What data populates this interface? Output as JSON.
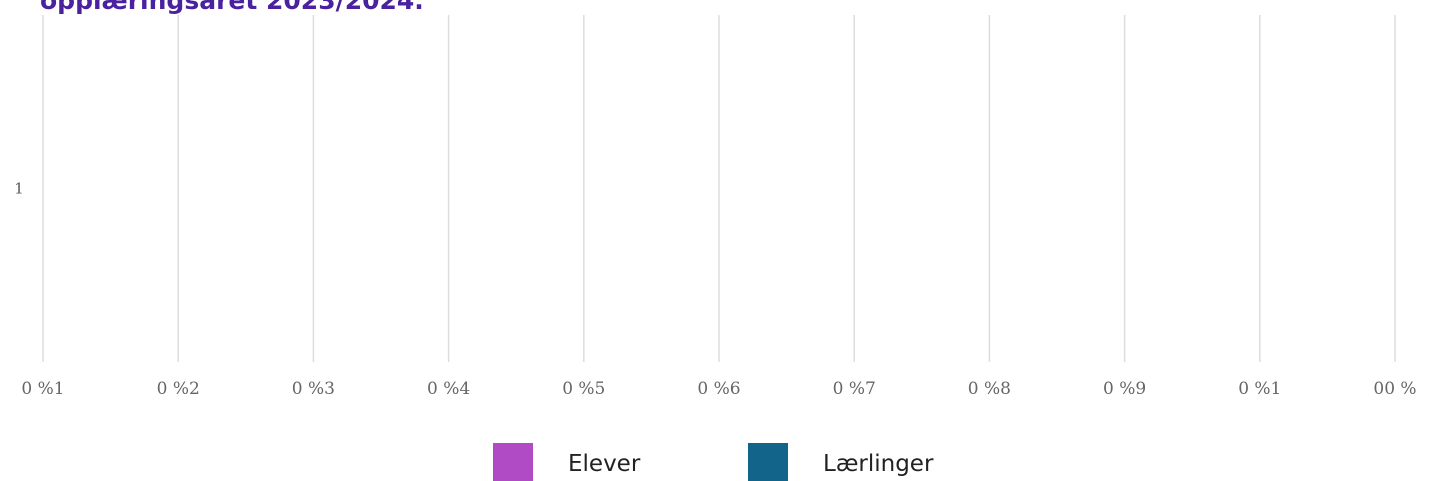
{
  "chart_data": {
    "type": "bar",
    "orientation": "horizontal",
    "title": "opplæringsåret 2023/2024.",
    "categories": [
      "1"
    ],
    "series": [
      {
        "name": "Elever",
        "color": "#b04ac5",
        "values": [
          0
        ]
      },
      {
        "name": "Lærlinger",
        "color": "#12648a",
        "values": [
          0
        ]
      }
    ],
    "x_ticks": [
      0,
      10,
      20,
      30,
      40,
      50,
      60,
      70,
      80,
      90,
      100
    ],
    "x_tick_labels": [
      "0 %1",
      "0 %2",
      "0 %3",
      "0 %4",
      "0 %5",
      "0 %6",
      "0 %7",
      "0 %8",
      "0 %9",
      "0 %1",
      "00 %"
    ],
    "xlim": [
      0,
      100
    ],
    "grid": true,
    "legend_position": "bottom-center",
    "gridline_color": "#dddddd"
  }
}
